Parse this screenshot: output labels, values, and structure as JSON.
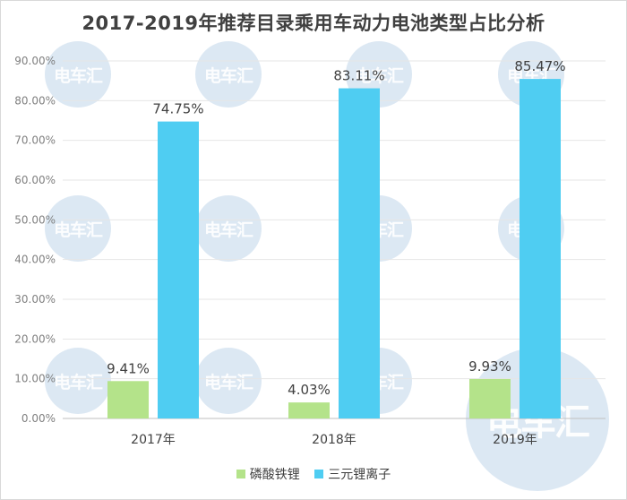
{
  "chart_data": {
    "type": "bar",
    "title": "2017-2019年推荐目录乘用车动力电池类型占比分析",
    "categories": [
      "2017年",
      "2018年",
      "2019年"
    ],
    "series": [
      {
        "name": "磷酸铁锂",
        "color": "#b4e38a",
        "values": [
          9.41,
          4.03,
          9.93
        ],
        "labels": [
          "9.41%",
          "4.03%",
          "9.93%"
        ]
      },
      {
        "name": "三元锂离子",
        "color": "#4fcdf2",
        "values": [
          74.75,
          83.11,
          85.47
        ],
        "labels": [
          "74.75%",
          "83.11%",
          "85.47%"
        ]
      }
    ],
    "yticks": [
      "0.00%",
      "10.00%",
      "20.00%",
      "30.00%",
      "40.00%",
      "50.00%",
      "60.00%",
      "70.00%",
      "80.00%",
      "90.00%"
    ],
    "ylim": [
      0,
      90
    ],
    "grid": true,
    "legend_position": "bottom"
  },
  "watermark": {
    "text": "电车汇"
  }
}
